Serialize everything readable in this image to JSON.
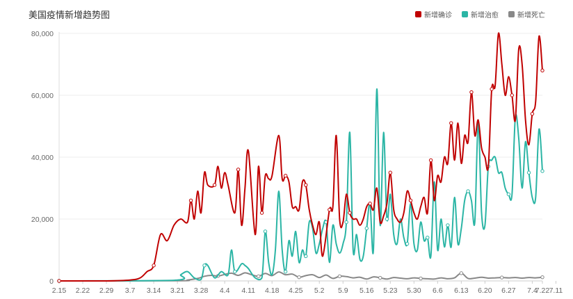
{
  "chart_data": {
    "type": "line",
    "title": "美国疫情新增趋势图",
    "xlabel": "",
    "ylabel": "",
    "ylim": [
      0,
      80000
    ],
    "yticks": [
      0,
      20000,
      40000,
      60000,
      80000
    ],
    "ytick_labels": [
      "0",
      "20,000",
      "40,000",
      "60,000",
      "80,000"
    ],
    "xticks": [
      "2.15",
      "2.22",
      "2.29",
      "3.7",
      "3.14",
      "3.21",
      "3.28",
      "4.4",
      "4.11",
      "4.18",
      "4.25",
      "5.2",
      "5.9",
      "5.16",
      "5.23",
      "5.30",
      "6.6",
      "6.13",
      "6.20",
      "6.27",
      "7.4",
      "7.11",
      "7.22"
    ],
    "grid": true,
    "legend_position": "top-right",
    "series": [
      {
        "name": "新增确诊",
        "color": "#c00000",
        "points": [
          [
            0,
            0
          ],
          [
            7,
            0
          ],
          [
            14,
            0
          ],
          [
            21,
            300
          ],
          [
            24,
            1000
          ],
          [
            26,
            3000
          ],
          [
            28,
            5000
          ],
          [
            30,
            15000
          ],
          [
            32,
            13000
          ],
          [
            34,
            18000
          ],
          [
            36,
            20000
          ],
          [
            38,
            19000
          ],
          [
            39,
            26000
          ],
          [
            40,
            20000
          ],
          [
            41,
            29000
          ],
          [
            42,
            22000
          ],
          [
            43,
            35000
          ],
          [
            44,
            31000
          ],
          [
            46,
            31000
          ],
          [
            47,
            37000
          ],
          [
            48,
            30000
          ],
          [
            49,
            35000
          ],
          [
            50,
            31000
          ],
          [
            52,
            22000
          ],
          [
            53,
            36000
          ],
          [
            54,
            18000
          ],
          [
            55,
            30000
          ],
          [
            56,
            42000
          ],
          [
            58,
            15000
          ],
          [
            59,
            37000
          ],
          [
            60,
            22000
          ],
          [
            61,
            34000
          ],
          [
            62,
            33000
          ],
          [
            63,
            34000
          ],
          [
            65,
            47000
          ],
          [
            66,
            33000
          ],
          [
            67,
            34000
          ],
          [
            68,
            32000
          ],
          [
            69,
            24000
          ],
          [
            70,
            24000
          ],
          [
            71,
            23000
          ],
          [
            72,
            32000
          ],
          [
            73,
            31000
          ],
          [
            74,
            23000
          ],
          [
            75,
            18000
          ],
          [
            76,
            15000
          ],
          [
            77,
            19000
          ],
          [
            78,
            8000
          ],
          [
            80,
            23000
          ],
          [
            81,
            24000
          ],
          [
            82,
            47000
          ],
          [
            83,
            20000
          ],
          [
            84,
            19000
          ],
          [
            85,
            28000
          ],
          [
            86,
            22000
          ],
          [
            87,
            20000
          ],
          [
            88,
            20000
          ],
          [
            89,
            18000
          ],
          [
            90,
            20000
          ],
          [
            91,
            24000
          ],
          [
            92,
            25000
          ],
          [
            93,
            23000
          ],
          [
            94,
            30000
          ],
          [
            95,
            19000
          ],
          [
            96,
            21000
          ],
          [
            97,
            25000
          ],
          [
            98,
            35000
          ],
          [
            99,
            23000
          ],
          [
            100,
            20000
          ],
          [
            101,
            19000
          ],
          [
            102,
            22000
          ],
          [
            103,
            29000
          ],
          [
            104,
            26000
          ],
          [
            105,
            22000
          ],
          [
            106,
            20000
          ],
          [
            107,
            24000
          ],
          [
            108,
            27000
          ],
          [
            109,
            22000
          ],
          [
            110,
            39000
          ],
          [
            111,
            26000
          ],
          [
            112,
            34000
          ],
          [
            113,
            32000
          ],
          [
            114,
            40000
          ],
          [
            115,
            38000
          ],
          [
            116,
            51000
          ],
          [
            117,
            39000
          ],
          [
            118,
            51000
          ],
          [
            119,
            38000
          ],
          [
            120,
            47000
          ],
          [
            121,
            45000
          ],
          [
            122,
            61000
          ],
          [
            123,
            47000
          ],
          [
            124,
            52000
          ],
          [
            125,
            43000
          ],
          [
            126,
            40000
          ],
          [
            127,
            37000
          ],
          [
            128,
            62000
          ],
          [
            129,
            63000
          ],
          [
            130,
            80000
          ],
          [
            131,
            70000
          ],
          [
            132,
            60000
          ],
          [
            133,
            66000
          ],
          [
            134,
            60000
          ],
          [
            135,
            52000
          ],
          [
            136,
            75000
          ],
          [
            137,
            70000
          ],
          [
            138,
            52000
          ],
          [
            139,
            44000
          ],
          [
            140,
            54000
          ],
          [
            141,
            58000
          ],
          [
            142,
            79000
          ],
          [
            143,
            68000
          ]
        ]
      },
      {
        "name": "新增治愈",
        "color": "#2bb5a5",
        "points": [
          [
            0,
            0
          ],
          [
            34,
            200
          ],
          [
            36,
            2000
          ],
          [
            38,
            3000
          ],
          [
            40,
            1000
          ],
          [
            42,
            500
          ],
          [
            43,
            5000
          ],
          [
            44,
            5000
          ],
          [
            46,
            1000
          ],
          [
            48,
            3000
          ],
          [
            50,
            2000
          ],
          [
            51,
            10000
          ],
          [
            52,
            3000
          ],
          [
            54,
            5500
          ],
          [
            55,
            5000
          ],
          [
            56,
            4000
          ],
          [
            58,
            1000
          ],
          [
            60,
            1000
          ],
          [
            61,
            16000
          ],
          [
            62,
            6000
          ],
          [
            63,
            2000
          ],
          [
            64,
            10000
          ],
          [
            65,
            29000
          ],
          [
            66,
            10000
          ],
          [
            67,
            3000
          ],
          [
            68,
            13000
          ],
          [
            69,
            8000
          ],
          [
            70,
            16000
          ],
          [
            71,
            6000
          ],
          [
            72,
            10000
          ],
          [
            73,
            8000
          ],
          [
            74,
            19000
          ],
          [
            75,
            17000
          ],
          [
            76,
            9000
          ],
          [
            77,
            12000
          ],
          [
            78,
            17000
          ],
          [
            79,
            19000
          ],
          [
            80,
            6000
          ],
          [
            81,
            18000
          ],
          [
            82,
            12000
          ],
          [
            83,
            9000
          ],
          [
            84,
            12000
          ],
          [
            85,
            19000
          ],
          [
            86,
            48000
          ],
          [
            87,
            10000
          ],
          [
            88,
            15000
          ],
          [
            89,
            7000
          ],
          [
            90,
            8000
          ],
          [
            91,
            17000
          ],
          [
            92,
            25000
          ],
          [
            93,
            10000
          ],
          [
            94,
            62000
          ],
          [
            95,
            18000
          ],
          [
            96,
            48000
          ],
          [
            97,
            20000
          ],
          [
            98,
            28000
          ],
          [
            99,
            15000
          ],
          [
            100,
            12000
          ],
          [
            101,
            20000
          ],
          [
            102,
            14000
          ],
          [
            103,
            12000
          ],
          [
            104,
            25000
          ],
          [
            105,
            12000
          ],
          [
            106,
            10000
          ],
          [
            107,
            19000
          ],
          [
            108,
            13000
          ],
          [
            109,
            14000
          ],
          [
            110,
            8000
          ],
          [
            111,
            32000
          ],
          [
            112,
            10000
          ],
          [
            113,
            20000
          ],
          [
            114,
            11000
          ],
          [
            115,
            18000
          ],
          [
            116,
            11000
          ],
          [
            117,
            27000
          ],
          [
            118,
            12000
          ],
          [
            119,
            17000
          ],
          [
            120,
            26000
          ],
          [
            121,
            29000
          ],
          [
            122,
            26000
          ],
          [
            123,
            19000
          ],
          [
            124,
            51000
          ],
          [
            125,
            22000
          ],
          [
            126,
            18000
          ],
          [
            127,
            37000
          ],
          [
            128,
            39000
          ],
          [
            129,
            40000
          ],
          [
            130,
            35000
          ],
          [
            131,
            35000
          ],
          [
            132,
            30000
          ],
          [
            133,
            28000
          ],
          [
            134,
            28000
          ],
          [
            135,
            53000
          ],
          [
            136,
            46000
          ],
          [
            137,
            30000
          ],
          [
            138,
            45000
          ],
          [
            139,
            35000
          ],
          [
            140,
            27000
          ],
          [
            141,
            27000
          ],
          [
            142,
            49000
          ],
          [
            143,
            35500
          ]
        ]
      },
      {
        "name": "新增死亡",
        "color": "#888888",
        "points": [
          [
            0,
            0
          ],
          [
            35,
            50
          ],
          [
            38,
            300
          ],
          [
            41,
            800
          ],
          [
            43,
            1500
          ],
          [
            45,
            1800
          ],
          [
            47,
            1600
          ],
          [
            49,
            2100
          ],
          [
            51,
            2500
          ],
          [
            53,
            1800
          ],
          [
            55,
            2600
          ],
          [
            57,
            2000
          ],
          [
            59,
            1500
          ],
          [
            61,
            2400
          ],
          [
            63,
            1700
          ],
          [
            65,
            2900
          ],
          [
            67,
            2000
          ],
          [
            69,
            2200
          ],
          [
            71,
            1200
          ],
          [
            73,
            1700
          ],
          [
            75,
            2000
          ],
          [
            77,
            1100
          ],
          [
            79,
            1900
          ],
          [
            81,
            800
          ],
          [
            83,
            1500
          ],
          [
            85,
            1400
          ],
          [
            87,
            1000
          ],
          [
            89,
            1200
          ],
          [
            91,
            600
          ],
          [
            93,
            1300
          ],
          [
            95,
            1000
          ],
          [
            97,
            600
          ],
          [
            99,
            1100
          ],
          [
            101,
            900
          ],
          [
            103,
            700
          ],
          [
            105,
            1000
          ],
          [
            107,
            800
          ],
          [
            109,
            700
          ],
          [
            111,
            600
          ],
          [
            113,
            1000
          ],
          [
            115,
            700
          ],
          [
            117,
            1000
          ],
          [
            119,
            2500
          ],
          [
            121,
            800
          ],
          [
            123,
            900
          ],
          [
            125,
            1200
          ],
          [
            127,
            900
          ],
          [
            129,
            1000
          ],
          [
            131,
            1100
          ],
          [
            133,
            1000
          ],
          [
            135,
            1100
          ],
          [
            137,
            900
          ],
          [
            139,
            1100
          ],
          [
            141,
            1000
          ],
          [
            143,
            1200
          ]
        ]
      }
    ]
  }
}
